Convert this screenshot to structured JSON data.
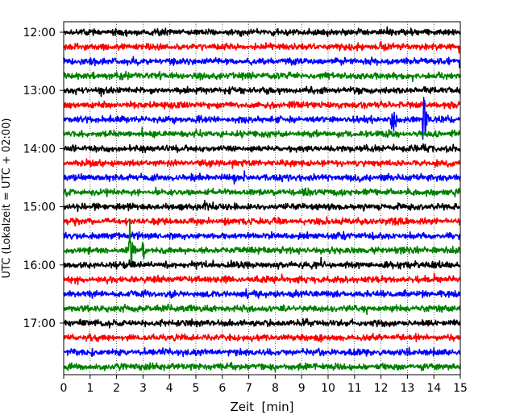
{
  "chart_data": {
    "type": "line",
    "title": "",
    "xlabel": "Zeit  [min]",
    "ylabel": "UTC (Lokalzeit = UTC + 02:00)",
    "xlim": [
      0,
      15
    ],
    "x_ticks": [
      0,
      1,
      2,
      3,
      4,
      5,
      6,
      7,
      8,
      9,
      10,
      11,
      12,
      13,
      14,
      15
    ],
    "x_grid": true,
    "y_tick_labels": [
      "12:00",
      "13:00",
      "14:00",
      "15:00",
      "16:00",
      "17:00"
    ],
    "y_tick_rows": [
      0,
      4,
      8,
      12,
      16,
      20
    ],
    "rows_per_hour": 4,
    "row_minutes": 15,
    "trace_colors": [
      "#000000",
      "#ff0000",
      "#0000ff",
      "#008000"
    ],
    "traces": [
      {
        "start": "12:00",
        "color": "#000000"
      },
      {
        "start": "12:15",
        "color": "#ff0000"
      },
      {
        "start": "12:30",
        "color": "#0000ff"
      },
      {
        "start": "12:45",
        "color": "#008000"
      },
      {
        "start": "13:00",
        "color": "#000000"
      },
      {
        "start": "13:15",
        "color": "#ff0000"
      },
      {
        "start": "13:30",
        "color": "#0000ff"
      },
      {
        "start": "13:45",
        "color": "#008000"
      },
      {
        "start": "14:00",
        "color": "#000000"
      },
      {
        "start": "14:15",
        "color": "#ff0000"
      },
      {
        "start": "14:30",
        "color": "#0000ff"
      },
      {
        "start": "14:45",
        "color": "#008000"
      },
      {
        "start": "15:00",
        "color": "#000000"
      },
      {
        "start": "15:15",
        "color": "#ff0000"
      },
      {
        "start": "15:30",
        "color": "#0000ff"
      },
      {
        "start": "15:45",
        "color": "#008000"
      },
      {
        "start": "16:00",
        "color": "#000000"
      },
      {
        "start": "16:15",
        "color": "#ff0000"
      },
      {
        "start": "16:30",
        "color": "#0000ff"
      },
      {
        "start": "16:45",
        "color": "#008000"
      },
      {
        "start": "17:00",
        "color": "#000000"
      },
      {
        "start": "17:15",
        "color": "#ff0000"
      },
      {
        "start": "17:30",
        "color": "#0000ff"
      },
      {
        "start": "17:45",
        "color": "#008000"
      }
    ],
    "events": [
      {
        "trace": 6,
        "minute": 12.4,
        "amplitude_rows": 1.0
      },
      {
        "trace": 6,
        "minute": 13.6,
        "amplitude_rows": 1.3
      },
      {
        "trace": 7,
        "minute": 14.7,
        "amplitude_rows": 0.25
      },
      {
        "trace": 15,
        "minute": 2.5,
        "amplitude_rows": 1.05
      },
      {
        "trace": 15,
        "minute": 3.0,
        "amplitude_rows": 0.3
      },
      {
        "trace": 18,
        "minute": 6.9,
        "amplitude_rows": 0.15
      },
      {
        "trace": 21,
        "minute": 9.7,
        "amplitude_rows": 0.12
      }
    ]
  }
}
